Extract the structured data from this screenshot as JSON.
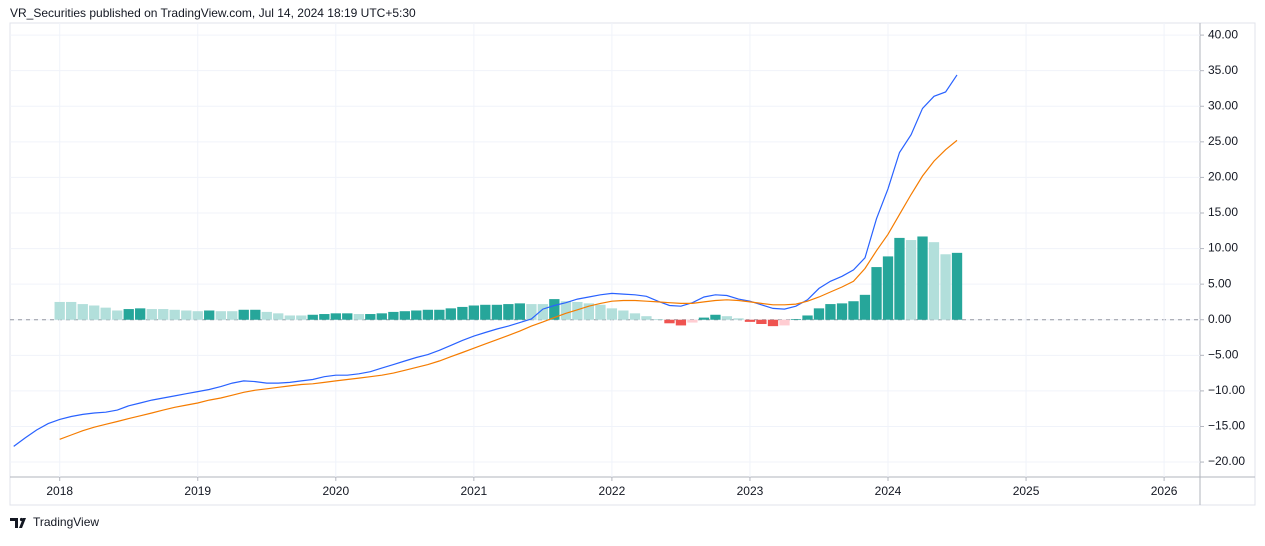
{
  "header": "VR_Securities published on TradingView.com, Jul 14, 2024 18:19 UTC+5:30",
  "footer": "TradingView",
  "chart_data": {
    "type": "bar",
    "x": [
      2017.667,
      2017.75,
      2017.833,
      2017.917,
      2018,
      2018.083,
      2018.167,
      2018.25,
      2018.333,
      2018.417,
      2018.5,
      2018.583,
      2018.667,
      2018.75,
      2018.833,
      2018.917,
      2019,
      2019.083,
      2019.167,
      2019.25,
      2019.333,
      2019.417,
      2019.5,
      2019.583,
      2019.667,
      2019.75,
      2019.833,
      2019.917,
      2020,
      2020.083,
      2020.167,
      2020.25,
      2020.333,
      2020.417,
      2020.5,
      2020.583,
      2020.667,
      2020.75,
      2020.833,
      2020.917,
      2021,
      2021.083,
      2021.167,
      2021.25,
      2021.333,
      2021.417,
      2021.5,
      2021.583,
      2021.667,
      2021.75,
      2021.833,
      2021.917,
      2022,
      2022.083,
      2022.167,
      2022.25,
      2022.333,
      2022.417,
      2022.5,
      2022.583,
      2022.667,
      2022.75,
      2022.833,
      2022.917,
      2023,
      2023.083,
      2023.167,
      2023.25,
      2023.333,
      2023.417,
      2023.5,
      2023.583,
      2023.667,
      2023.75,
      2023.833,
      2023.917,
      2024,
      2024.083,
      2024.167,
      2024.25,
      2024.333,
      2024.417,
      2024.5
    ],
    "series": [
      {
        "type": "bar",
        "values": [
          null,
          null,
          null,
          null,
          2.5,
          2.5,
          2.2,
          2.0,
          1.7,
          1.3,
          1.5,
          1.6,
          1.5,
          1.5,
          1.4,
          1.3,
          1.2,
          1.3,
          1.2,
          1.2,
          1.4,
          1.4,
          1.1,
          0.9,
          0.6,
          0.6,
          0.7,
          0.8,
          0.9,
          0.9,
          0.8,
          0.8,
          0.9,
          1.1,
          1.2,
          1.3,
          1.4,
          1.4,
          1.6,
          1.8,
          2.0,
          2.1,
          2.1,
          2.2,
          2.3,
          2.2,
          2.2,
          2.9,
          2.6,
          2.5,
          2.3,
          2.1,
          1.6,
          1.3,
          0.9,
          0.5,
          0.1,
          -0.5,
          -0.8,
          -0.4,
          0.3,
          0.7,
          0.5,
          0.2,
          -0.3,
          -0.6,
          -0.9,
          -0.8,
          0.1,
          0.6,
          1.6,
          2.2,
          2.3,
          2.6,
          3.5,
          7.4,
          8.9,
          11.5,
          11.2,
          11.7,
          10.9,
          9.2,
          9.4
        ],
        "colors": [
          null,
          null,
          null,
          null,
          "#b2dfdb",
          "#b2dfdb",
          "#b2dfdb",
          "#b2dfdb",
          "#b2dfdb",
          "#b2dfdb",
          "#26a69a",
          "#26a69a",
          "#b2dfdb",
          "#b2dfdb",
          "#b2dfdb",
          "#b2dfdb",
          "#b2dfdb",
          "#26a69a",
          "#b2dfdb",
          "#b2dfdb",
          "#26a69a",
          "#26a69a",
          "#b2dfdb",
          "#b2dfdb",
          "#b2dfdb",
          "#b2dfdb",
          "#26a69a",
          "#26a69a",
          "#26a69a",
          "#26a69a",
          "#b2dfdb",
          "#26a69a",
          "#26a69a",
          "#26a69a",
          "#26a69a",
          "#26a69a",
          "#26a69a",
          "#26a69a",
          "#26a69a",
          "#26a69a",
          "#26a69a",
          "#26a69a",
          "#26a69a",
          "#26a69a",
          "#26a69a",
          "#b2dfdb",
          "#b2dfdb",
          "#26a69a",
          "#b2dfdb",
          "#b2dfdb",
          "#b2dfdb",
          "#b2dfdb",
          "#b2dfdb",
          "#b2dfdb",
          "#b2dfdb",
          "#b2dfdb",
          "#b2dfdb",
          "#ef5350",
          "#ef5350",
          "#ffcdd2",
          "#26a69a",
          "#26a69a",
          "#b2dfdb",
          "#b2dfdb",
          "#ef5350",
          "#ef5350",
          "#ef5350",
          "#ffcdd2",
          "#26a69a",
          "#26a69a",
          "#26a69a",
          "#26a69a",
          "#26a69a",
          "#26a69a",
          "#26a69a",
          "#26a69a",
          "#26a69a",
          "#26a69a",
          "#b2dfdb",
          "#26a69a",
          "#b2dfdb",
          "#b2dfdb",
          "#26a69a"
        ]
      },
      {
        "type": "line",
        "color": "#2962ff",
        "values": [
          -17.8,
          -16.6,
          -15.5,
          -14.6,
          -14.0,
          -13.6,
          -13.3,
          -13.1,
          -13.0,
          -12.7,
          -12.1,
          -11.7,
          -11.3,
          -11.0,
          -10.7,
          -10.4,
          -10.1,
          -9.8,
          -9.4,
          -8.9,
          -8.6,
          -8.7,
          -8.9,
          -8.9,
          -8.8,
          -8.6,
          -8.4,
          -8.0,
          -7.8,
          -7.8,
          -7.6,
          -7.3,
          -6.8,
          -6.3,
          -5.8,
          -5.3,
          -4.9,
          -4.3,
          -3.6,
          -2.9,
          -2.3,
          -1.8,
          -1.3,
          -0.9,
          -0.4,
          0.1,
          1.5,
          2.0,
          2.4,
          2.9,
          3.2,
          3.5,
          3.7,
          3.6,
          3.5,
          3.3,
          2.6,
          2.0,
          1.9,
          2.4,
          3.2,
          3.5,
          3.4,
          2.9,
          2.6,
          2.1,
          1.6,
          1.5,
          1.9,
          2.8,
          4.4,
          5.4,
          6.1,
          7.0,
          8.7,
          14.2,
          18.4,
          23.5,
          26.0,
          29.7,
          31.4,
          32.0,
          34.4
        ]
      },
      {
        "type": "line",
        "color": "#f57c00",
        "values": [
          null,
          null,
          null,
          null,
          -16.8,
          -16.2,
          -15.6,
          -15.1,
          -14.7,
          -14.3,
          -13.9,
          -13.5,
          -13.1,
          -12.7,
          -12.3,
          -12.0,
          -11.7,
          -11.3,
          -11.0,
          -10.6,
          -10.2,
          -9.9,
          -9.7,
          -9.5,
          -9.3,
          -9.1,
          -9.0,
          -8.8,
          -8.6,
          -8.4,
          -8.2,
          -8.0,
          -7.8,
          -7.5,
          -7.1,
          -6.7,
          -6.3,
          -5.8,
          -5.2,
          -4.6,
          -4.0,
          -3.4,
          -2.8,
          -2.2,
          -1.6,
          -0.9,
          -0.3,
          0.3,
          0.9,
          1.4,
          1.9,
          2.3,
          2.6,
          2.7,
          2.7,
          2.6,
          2.5,
          2.4,
          2.3,
          2.3,
          2.5,
          2.7,
          2.8,
          2.7,
          2.5,
          2.3,
          2.1,
          2.1,
          2.2,
          2.6,
          3.2,
          3.9,
          4.6,
          5.4,
          7.2,
          9.7,
          12.0,
          14.8,
          17.6,
          20.2,
          22.3,
          23.9,
          25.2
        ]
      }
    ],
    "xlim": [
      2017.64,
      2026.26
    ],
    "xticks": [
      2018,
      2019,
      2020,
      2021,
      2022,
      2023,
      2024,
      2025,
      2026
    ],
    "ylim": [
      -22.1,
      41.7
    ],
    "yticks": [
      {
        "value": 40,
        "label": "40.00"
      },
      {
        "value": 35,
        "label": "35.00"
      },
      {
        "value": 30,
        "label": "30.00"
      },
      {
        "value": 25,
        "label": "25.00"
      },
      {
        "value": 20,
        "label": "20.00"
      },
      {
        "value": 15,
        "label": "15.00"
      },
      {
        "value": 10,
        "label": "10.00"
      },
      {
        "value": 5,
        "label": "5.00"
      },
      {
        "value": 0,
        "label": "0.00"
      },
      {
        "value": -5,
        "label": "−5.00"
      },
      {
        "value": -10,
        "label": "−10.00"
      },
      {
        "value": -15,
        "label": "−15.00"
      },
      {
        "value": -20,
        "label": "−20.00"
      }
    ],
    "grid": true
  }
}
